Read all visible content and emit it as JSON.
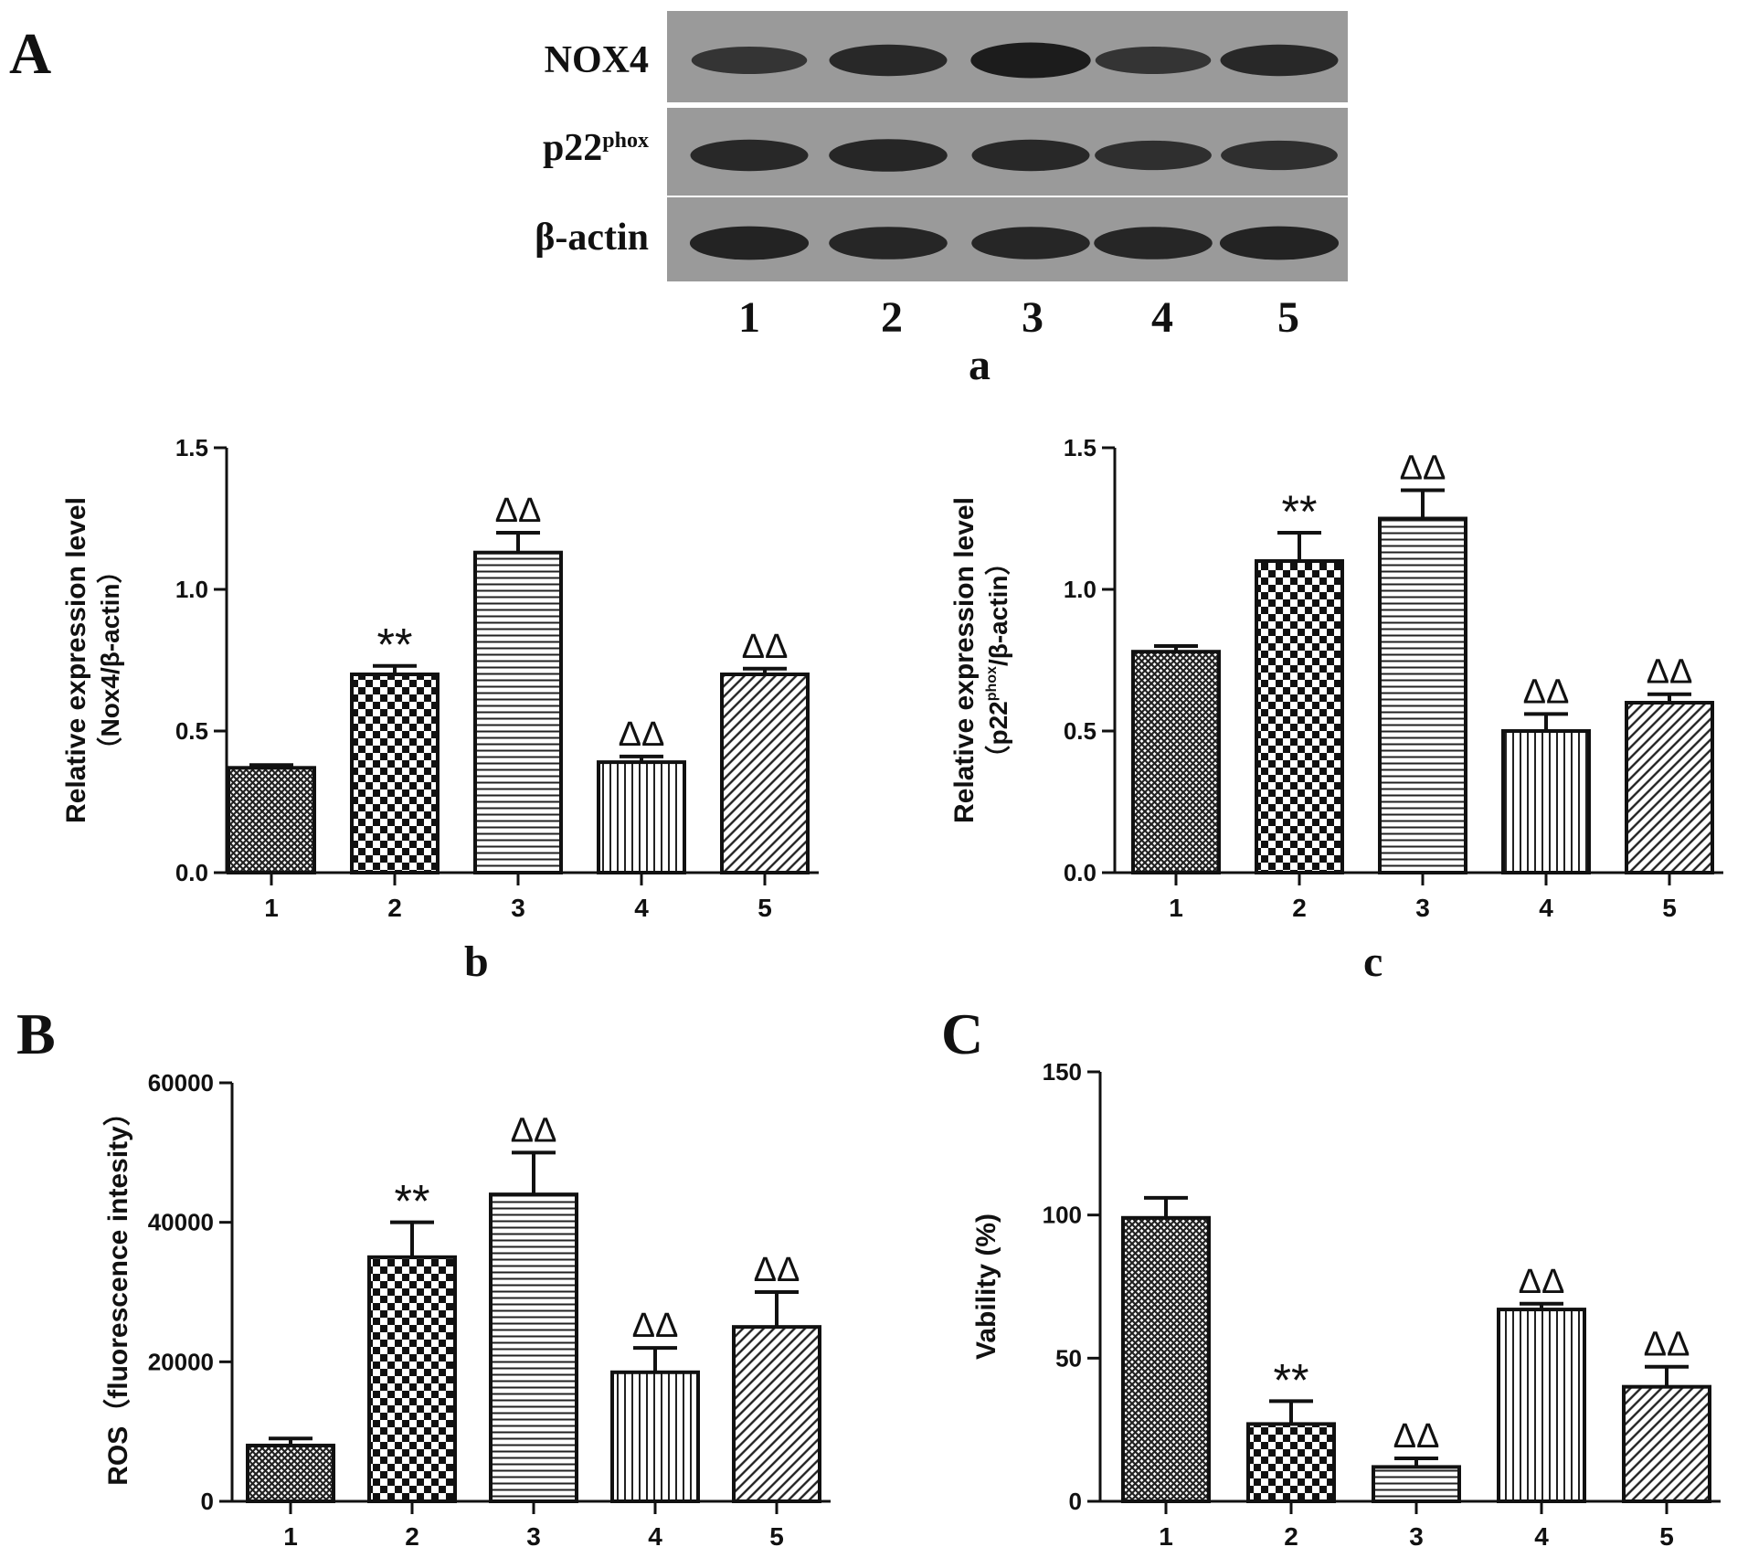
{
  "panels": {
    "A": "A",
    "B": "B",
    "C": "C",
    "sub_a": "a",
    "sub_b": "b",
    "sub_c": "c"
  },
  "blot": {
    "rows": [
      {
        "label": "NOX4",
        "sup": "",
        "intensity": [
          0.55,
          0.75,
          0.95,
          0.55,
          0.75
        ]
      },
      {
        "label": "p22",
        "sup": "phox",
        "intensity": [
          0.75,
          0.8,
          0.75,
          0.65,
          0.65
        ]
      },
      {
        "label": "β-actin",
        "sup": "",
        "intensity": [
          0.85,
          0.8,
          0.8,
          0.8,
          0.85
        ]
      }
    ],
    "lanes": [
      "1",
      "2",
      "3",
      "4",
      "5"
    ]
  },
  "colors": {
    "bar_stroke": "#111111",
    "blot_bg": "#9a9a9a",
    "band": "#1a1a1a"
  },
  "chart_data": [
    {
      "id": "b",
      "type": "bar",
      "ylabel_line1": "Relative expression level",
      "ylabel_line2": "（Nox4/β-actin）",
      "ylabel_sup": "",
      "ylabel_line2_tail": "",
      "categories": [
        "1",
        "2",
        "3",
        "4",
        "5"
      ],
      "values": [
        0.37,
        0.7,
        1.13,
        0.39,
        0.7
      ],
      "errors": [
        0.01,
        0.03,
        0.07,
        0.02,
        0.02
      ],
      "annotations": [
        "",
        "**",
        "ΔΔ",
        "ΔΔ",
        "ΔΔ"
      ],
      "ylim": [
        0,
        1.5
      ],
      "yticks": [
        0,
        0.5,
        1.0,
        1.5
      ],
      "ytick_labels": [
        "0.0",
        "0.5",
        "1.0",
        "1.5"
      ],
      "patterns": [
        "crosshatch",
        "checker",
        "hlines",
        "vlines",
        "diag"
      ]
    },
    {
      "id": "c",
      "type": "bar",
      "ylabel_line1": "Relative expression level",
      "ylabel_line2": "（p22",
      "ylabel_sup": "phox",
      "ylabel_line2_tail": "/β-actin）",
      "categories": [
        "1",
        "2",
        "3",
        "4",
        "5"
      ],
      "values": [
        0.78,
        1.1,
        1.25,
        0.5,
        0.6
      ],
      "errors": [
        0.02,
        0.1,
        0.1,
        0.06,
        0.03
      ],
      "annotations": [
        "",
        "**",
        "ΔΔ",
        "ΔΔ",
        "ΔΔ"
      ],
      "ylim": [
        0,
        1.5
      ],
      "yticks": [
        0,
        0.5,
        1.0,
        1.5
      ],
      "ytick_labels": [
        "0.0",
        "0.5",
        "1.0",
        "1.5"
      ],
      "patterns": [
        "crosshatch",
        "checker",
        "hlines",
        "vlines",
        "diag"
      ]
    },
    {
      "id": "B",
      "type": "bar",
      "ylabel_line1": "ROS（fluorescence intesity）",
      "ylabel_line2": "",
      "ylabel_sup": "",
      "ylabel_line2_tail": "",
      "categories": [
        "1",
        "2",
        "3",
        "4",
        "5"
      ],
      "values": [
        8000,
        35000,
        44000,
        18500,
        25000
      ],
      "errors": [
        1000,
        5000,
        6000,
        3500,
        5000
      ],
      "annotations": [
        "",
        "**",
        "ΔΔ",
        "ΔΔ",
        "ΔΔ"
      ],
      "ylim": [
        0,
        60000
      ],
      "yticks": [
        0,
        20000,
        40000,
        60000
      ],
      "ytick_labels": [
        "0",
        "20000",
        "40000",
        "60000"
      ],
      "patterns": [
        "crosshatch",
        "checker",
        "hlines",
        "vlines",
        "diag"
      ]
    },
    {
      "id": "C",
      "type": "bar",
      "ylabel_line1": "Vability (%)",
      "ylabel_line2": "",
      "ylabel_sup": "",
      "ylabel_line2_tail": "",
      "categories": [
        "1",
        "2",
        "3",
        "4",
        "5"
      ],
      "values": [
        99,
        27,
        12,
        67,
        40
      ],
      "errors": [
        7,
        8,
        3,
        2,
        7
      ],
      "annotations": [
        "",
        "**",
        "ΔΔ",
        "ΔΔ",
        "ΔΔ"
      ],
      "ylim": [
        0,
        150
      ],
      "yticks": [
        0,
        50,
        100,
        150
      ],
      "ytick_labels": [
        "0",
        "50",
        "100",
        "150"
      ],
      "patterns": [
        "crosshatch",
        "checker",
        "hlines",
        "vlines",
        "diag"
      ]
    }
  ]
}
